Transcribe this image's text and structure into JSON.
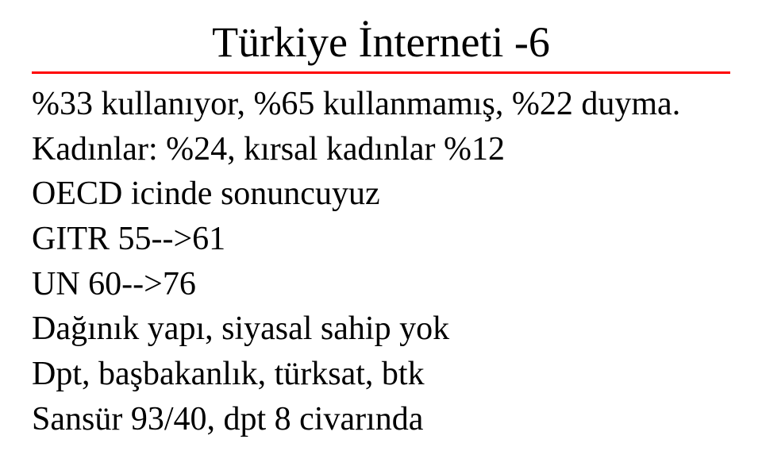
{
  "title": "Türkiye İnterneti -6",
  "rule_color": "#ff0000",
  "lines": {
    "l1": "%33 kullanıyor, %65  kullanmamış, %22 duyma.",
    "l2": "Kadınlar: %24,  kırsal kadınlar %12",
    "l3": "OECD icinde  sonuncuyuz",
    "l4": "GITR  55-->61",
    "l5": "UN   60-->76",
    "l6": "Dağınık yapı, siyasal sahip yok",
    "l7": "Dpt, başbakanlık, türksat,  btk",
    "l8": "Sansür  93/40,  dpt  8 civarında"
  }
}
